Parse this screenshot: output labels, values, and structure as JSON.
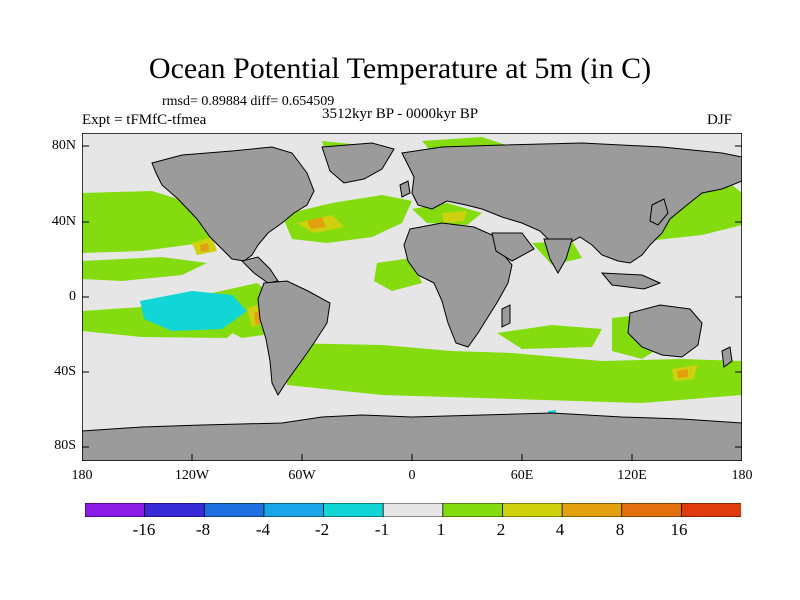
{
  "title": "Ocean Potential Temperature at 5m (in C)",
  "stats_line": "rmsd= 0.89884 diff= 0.654509",
  "experiment": "Expt = tFMfC-tfmea",
  "period": "3512kyr BP - 0000kyr BP",
  "season": "DJF",
  "lat_ticks": [
    "80N",
    "40N",
    "0",
    "40S",
    "80S"
  ],
  "lon_ticks": [
    "180",
    "120W",
    "60W",
    "0",
    "60E",
    "120E",
    "180"
  ],
  "colorbar": {
    "levels": [
      "-16",
      "-8",
      "-4",
      "-2",
      "-1",
      "1",
      "2",
      "4",
      "8",
      "16"
    ],
    "colors": [
      "#8a1ce6",
      "#3a2bd8",
      "#1f6fe0",
      "#1aa5e8",
      "#12d6d6",
      "#e6e6e6",
      "#84dc0e",
      "#cfd10e",
      "#e2a00e",
      "#e4700f",
      "#e03a10"
    ]
  },
  "palette": {
    "land": "#9b9b9b",
    "ocean_neutral": "#e6e6e6",
    "warm_green": "#84dc0e",
    "warm_yellow": "#cfd10e",
    "warm_orange": "#e2a00e",
    "cool_cyan": "#12d6d6",
    "cool_blue": "#1aa5e8"
  }
}
